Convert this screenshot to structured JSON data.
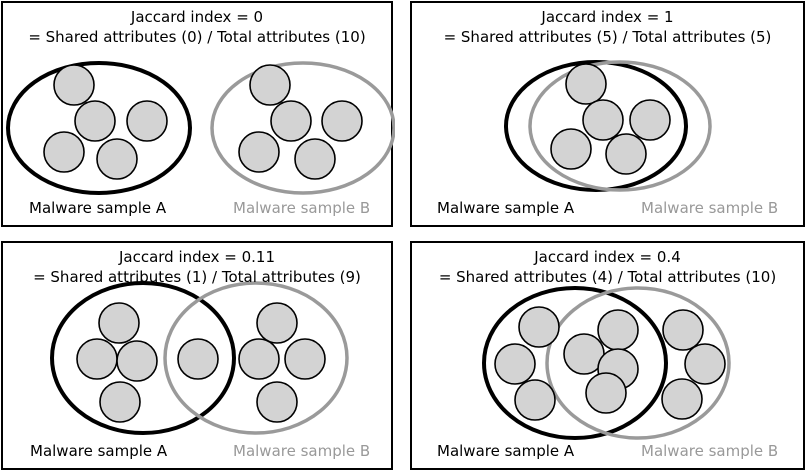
{
  "colors": {
    "set_a": "#000000",
    "set_b": "#9a9a9a",
    "attribute_fill": "#d3d3d3",
    "attribute_stroke": "#000000"
  },
  "panels": [
    {
      "title": "Jaccard index = 0",
      "formula": "= Shared attributes (0) / Total attributes (10)",
      "label_a": "Malware sample A",
      "label_b": "Malware sample B"
    },
    {
      "title": "Jaccard index = 1",
      "formula": "= Shared attributes (5) / Total attributes (5)",
      "label_a": "Malware sample A",
      "label_b": "Malware sample B"
    },
    {
      "title": "Jaccard index = 0.11",
      "formula": "= Shared attributes (1) / Total attributes (9)",
      "label_a": "Malware sample A",
      "label_b": "Malware sample B"
    },
    {
      "title": "Jaccard index = 0.4",
      "formula": "= Shared attributes (4) / Total attributes (10)",
      "label_a": "Malware sample A",
      "label_b": "Malware sample B"
    }
  ]
}
